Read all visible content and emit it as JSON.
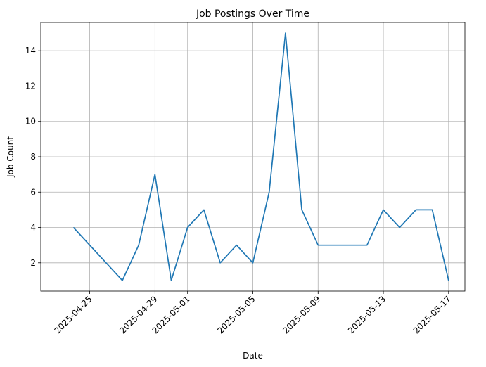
{
  "chart_data": {
    "type": "line",
    "title": "Job Postings Over Time",
    "xlabel": "Date",
    "ylabel": "Job Count",
    "grid": true,
    "x_range": [
      "2025-04-22",
      "2025-05-18"
    ],
    "ylim": [
      0.4,
      15.6
    ],
    "x_ticks": [
      "2025-04-25",
      "2025-04-29",
      "2025-05-01",
      "2025-05-05",
      "2025-05-09",
      "2025-05-13",
      "2025-05-17"
    ],
    "y_ticks": [
      2,
      4,
      6,
      8,
      10,
      12,
      14
    ],
    "colors": {
      "line": "#1f77b4"
    },
    "series": [
      {
        "x": [
          "2025-04-24",
          "2025-04-27",
          "2025-04-28",
          "2025-04-29",
          "2025-04-30",
          "2025-05-01",
          "2025-05-02",
          "2025-05-03",
          "2025-05-04",
          "2025-05-05",
          "2025-05-06",
          "2025-05-07",
          "2025-05-08",
          "2025-05-09",
          "2025-05-12",
          "2025-05-13",
          "2025-05-14",
          "2025-05-15",
          "2025-05-16",
          "2025-05-17"
        ],
        "values": [
          4,
          1,
          3,
          7,
          1,
          4,
          5,
          2,
          3,
          2,
          6,
          15,
          5,
          3,
          3,
          5,
          4,
          5,
          5,
          1
        ]
      }
    ]
  }
}
